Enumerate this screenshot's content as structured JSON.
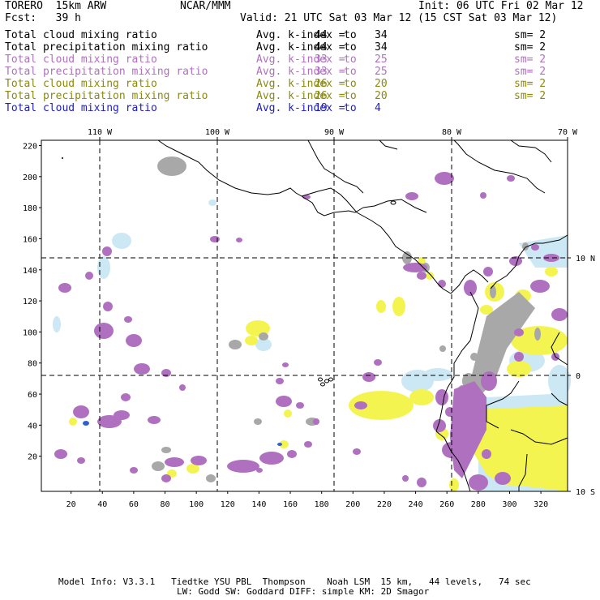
{
  "header": {
    "model": "TORERO  15km ARW",
    "org": "NCAR/MMM",
    "init": "Init: 06 UTC Fri 02 Mar 12",
    "fcst": "Fcst:   39 h",
    "valid": "Valid: 21 UTC Sat 03 Mar 12 (15 CST Sat 03 Mar 12)"
  },
  "legend": [
    {
      "field": "Total cloud mixing ratio",
      "avg": "Avg. k-index =",
      "from": "44",
      "to_word": "to",
      "to": "34",
      "sm": "sm= 2",
      "color": "#000000"
    },
    {
      "field": "Total precipitation mixing ratio",
      "avg": "Avg. k-index =",
      "from": "44",
      "to_word": "to",
      "to": "34",
      "sm": "sm= 2",
      "color": "#000000"
    },
    {
      "field": "Total cloud mixing ratio",
      "avg": "Avg. k-index =",
      "from": "33",
      "to_word": "to",
      "to": "25",
      "sm": "sm= 2",
      "color": "#b070c0"
    },
    {
      "field": "Total precipitation mixing ratio",
      "avg": "Avg. k-index =",
      "from": "33",
      "to_word": "to",
      "to": "25",
      "sm": "sm= 2",
      "color": "#b070c0"
    },
    {
      "field": "Total cloud mixing ratio",
      "avg": "Avg. k-index =",
      "from": "26",
      "to_word": "to",
      "to": "20",
      "sm": "sm= 2",
      "color": "#8a8a10"
    },
    {
      "field": "Total precipitation mixing ratio",
      "avg": "Avg. k-index =",
      "from": "26",
      "to_word": "to",
      "to": "20",
      "sm": "sm= 2",
      "color": "#8a8a10"
    },
    {
      "field": "Total cloud mixing ratio",
      "avg": "Avg. k-index =",
      "from": "19",
      "to_word": "to",
      "to": "4",
      "sm": "",
      "color": "#2020c0"
    }
  ],
  "map": {
    "lon_labels": [
      "110 W",
      "100 W",
      "90 W",
      "80 W",
      "70 W"
    ],
    "lat_labels": [
      "10 N",
      "0",
      "10 S"
    ],
    "y_ticks": [
      "220",
      "200",
      "180",
      "160",
      "140",
      "120",
      "100",
      "80",
      "60",
      "40",
      "20"
    ],
    "x_ticks": [
      "20",
      "40",
      "60",
      "80",
      "100",
      "120",
      "140",
      "160",
      "180",
      "200",
      "220",
      "240",
      "260",
      "280",
      "300",
      "320"
    ],
    "colors": {
      "gray": "#a8a8a8",
      "purple": "#b070c0",
      "yellow": "#f4f450",
      "lightblue": "#cce8f4",
      "blue": "#3060d0",
      "coast": "#000000",
      "grid": "#000000"
    }
  },
  "footer": {
    "line1": "Model Info: V3.3.1   Tiedtke YSU PBL  Thompson    Noah LSM  15 km,   44 levels,   74 sec",
    "line2": "LW: Godd SW: Goddard DIFF: simple KM: 2D Smagor"
  }
}
